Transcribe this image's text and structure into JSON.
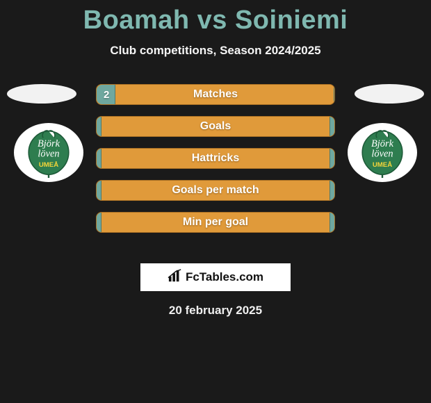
{
  "title": "Boamah vs Soiniemi",
  "subtitle": "Club competitions, Season 2024/2025",
  "date": "20 february 2025",
  "brand": "FcTables.com",
  "colors": {
    "title": "#7fb8b0",
    "bar_base": "#e09a3a",
    "bar_fill": "#6fa89f",
    "bg": "#1a1a1a"
  },
  "club_logo": {
    "leaf_fill": "#2e7d4f",
    "leaf_stroke": "#1d5a38",
    "text_top": "Björk",
    "text_mid": "löven",
    "text_bot": "UMEÅ",
    "text_color": "#ffffff",
    "accent": "#f4d53a"
  },
  "stats": [
    {
      "label": "Matches",
      "left_val": "2",
      "left_pct": 8,
      "right_pct": 0
    },
    {
      "label": "Goals",
      "left_val": "",
      "left_pct": 2,
      "right_pct": 2
    },
    {
      "label": "Hattricks",
      "left_val": "",
      "left_pct": 2,
      "right_pct": 2
    },
    {
      "label": "Goals per match",
      "left_val": "",
      "left_pct": 2,
      "right_pct": 2
    },
    {
      "label": "Min per goal",
      "left_val": "",
      "left_pct": 2,
      "right_pct": 2
    }
  ]
}
